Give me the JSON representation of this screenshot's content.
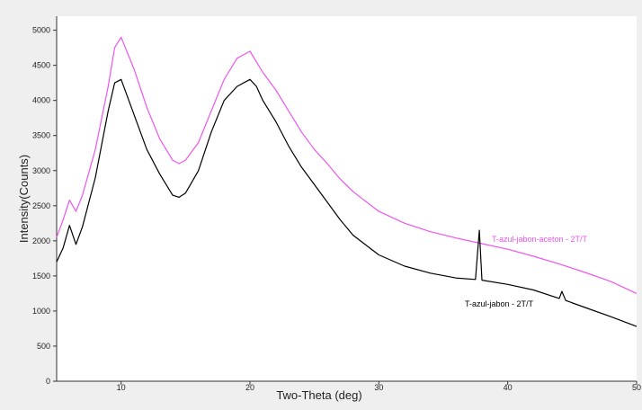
{
  "chart_data": {
    "type": "line",
    "title": "",
    "xlabel": "Two-Theta (deg)",
    "ylabel": "Intensity(Counts)",
    "xlim": [
      5,
      50
    ],
    "ylim": [
      0,
      5200
    ],
    "x_ticks": [
      10,
      20,
      30,
      40,
      50
    ],
    "y_ticks": [
      0,
      500,
      1000,
      1500,
      2000,
      2500,
      3000,
      3500,
      4000,
      4500,
      5000
    ],
    "grid": false,
    "series": [
      {
        "name": "T-azul-jabon-aceton - 2T/T",
        "color": "#ee55ee",
        "x": [
          5,
          5.5,
          6,
          6.5,
          7,
          8,
          9,
          9.5,
          10,
          11,
          12,
          13,
          14,
          14.5,
          15,
          16,
          17,
          18,
          19,
          20,
          20.5,
          21,
          22,
          23,
          24,
          25,
          26,
          27,
          28,
          30,
          32,
          34,
          36,
          38,
          40,
          42,
          44,
          46,
          48,
          50
        ],
        "y": [
          2050,
          2300,
          2580,
          2420,
          2650,
          3300,
          4200,
          4750,
          4900,
          4450,
          3900,
          3450,
          3150,
          3100,
          3150,
          3400,
          3850,
          4300,
          4600,
          4700,
          4550,
          4400,
          4150,
          3850,
          3550,
          3300,
          3100,
          2880,
          2700,
          2420,
          2250,
          2130,
          2040,
          1960,
          1880,
          1780,
          1670,
          1550,
          1420,
          1250
        ]
      },
      {
        "name": "T-azul-jabon - 2T/T",
        "color": "#000000",
        "x": [
          5,
          5.5,
          6,
          6.5,
          7,
          8,
          9,
          9.5,
          10,
          11,
          12,
          13,
          14,
          14.5,
          15,
          16,
          17,
          18,
          19,
          20,
          20.5,
          21,
          22,
          23,
          24,
          25,
          26,
          27,
          28,
          30,
          32,
          34,
          36,
          37.5,
          37.8,
          38,
          40,
          42,
          44,
          44.2,
          44.5,
          46,
          48,
          50
        ],
        "y": [
          1700,
          1900,
          2220,
          1950,
          2200,
          2900,
          3850,
          4250,
          4300,
          3800,
          3300,
          2950,
          2650,
          2620,
          2680,
          3000,
          3550,
          4000,
          4200,
          4300,
          4200,
          4000,
          3700,
          3350,
          3050,
          2800,
          2550,
          2300,
          2080,
          1800,
          1640,
          1540,
          1470,
          1450,
          2150,
          1440,
          1380,
          1300,
          1180,
          1280,
          1150,
          1050,
          920,
          780
        ]
      }
    ]
  }
}
